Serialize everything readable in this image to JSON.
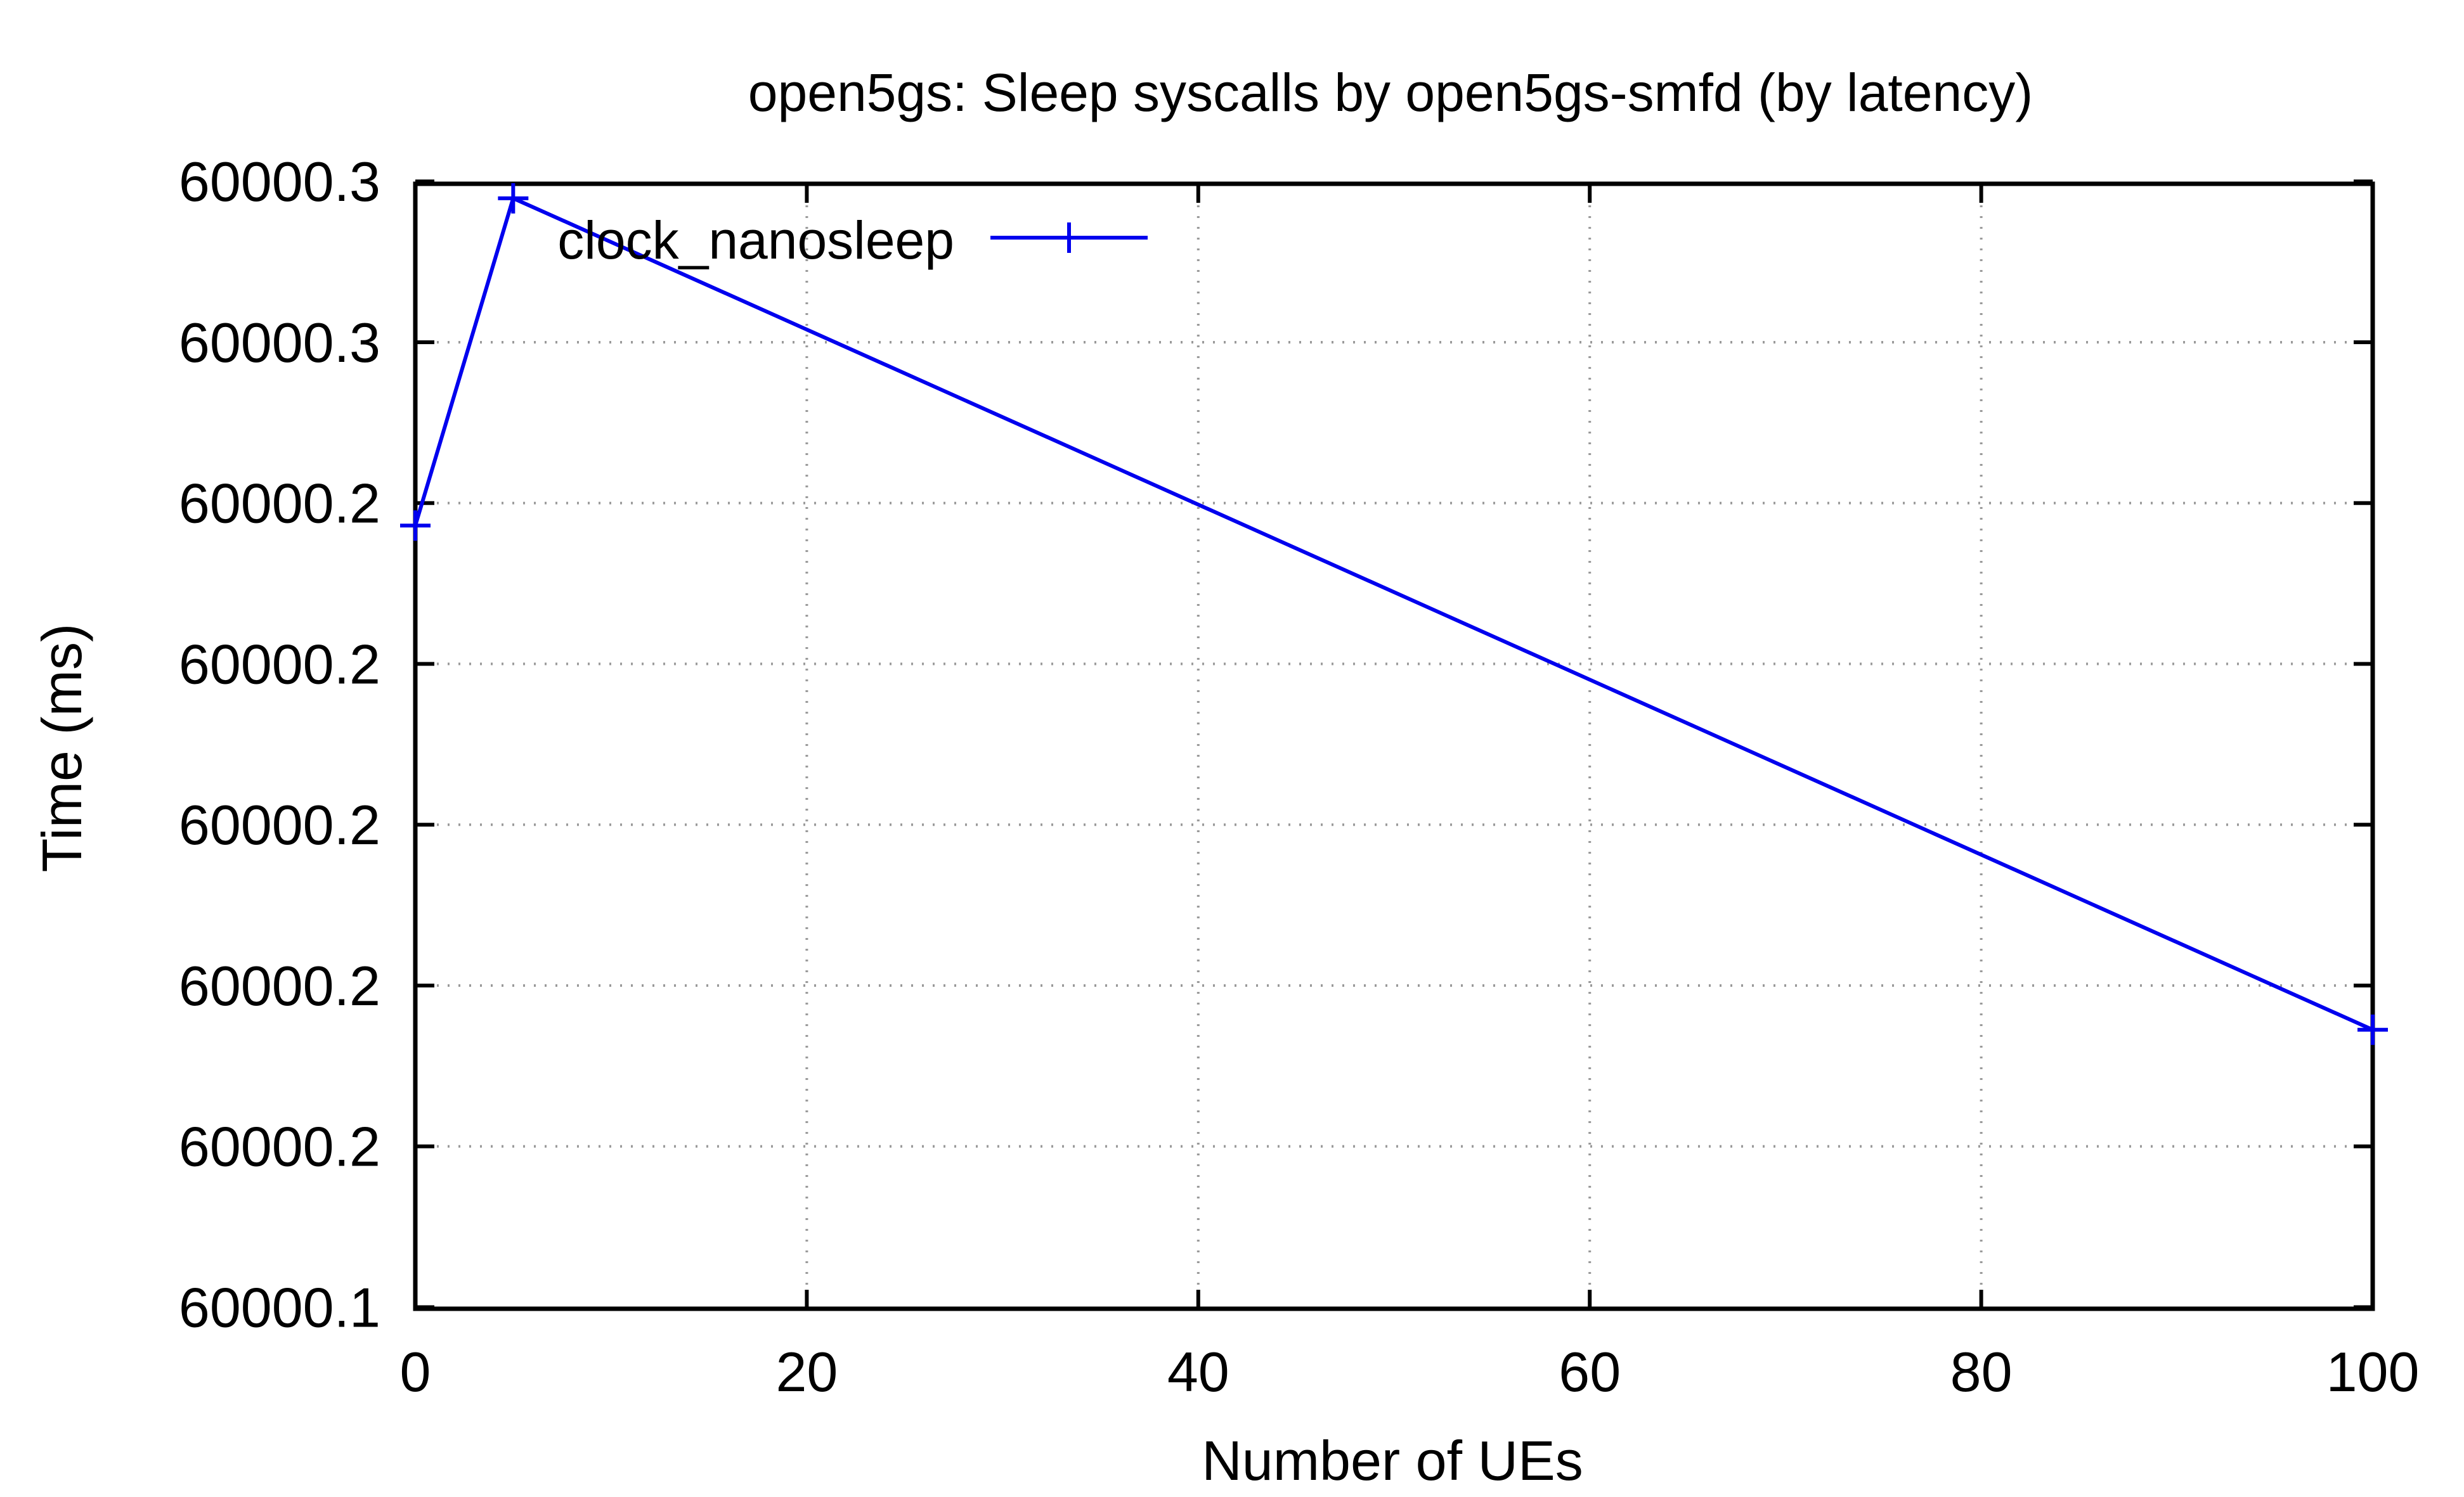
{
  "chart_data": {
    "type": "line",
    "title": "open5gs: Sleep syscalls by open5gs-smfd (by latency)",
    "xlabel": "Number of UEs",
    "ylabel": "Time (ms)",
    "xlim": [
      0,
      100
    ],
    "ylim": [
      60000.1348,
      60000.2747
    ],
    "x_ticks": [
      0,
      20,
      40,
      60,
      80,
      100
    ],
    "x_tick_labels": [
      "0",
      "20",
      "40",
      "60",
      "80",
      "100"
    ],
    "y_ticks": [
      60000.135,
      60000.155,
      60000.175,
      60000.195,
      60000.215,
      60000.235,
      60000.255,
      60000.275
    ],
    "y_tick_labels": [
      "60000.1",
      "60000.2",
      "60000.2",
      "60000.2",
      "60000.2",
      "60000.2",
      "60000.3",
      "60000.3"
    ],
    "grid": true,
    "legend_position": "top-left",
    "series": [
      {
        "name": "clock_nanosleep",
        "color": "#0000ee",
        "marker": "plus",
        "x": [
          0,
          5,
          100
        ],
        "y": [
          60000.2322,
          60000.2729,
          60000.1695
        ]
      }
    ]
  }
}
